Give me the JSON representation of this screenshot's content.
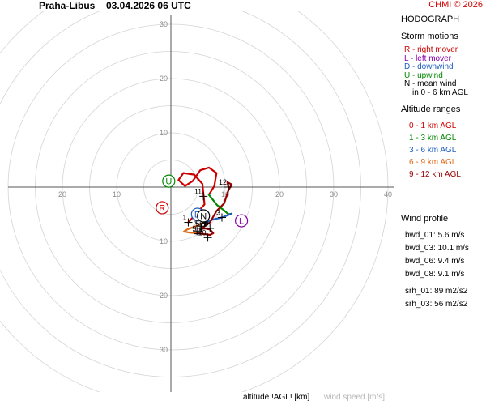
{
  "header": {
    "station": "Praha-Libus",
    "datetime": "03.04.2026 06 UTC",
    "copyright": "CHMI © 2026"
  },
  "panel": {
    "title": "HODOGRAPH",
    "storm_motions_title": "Storm motions",
    "storm_motions": [
      {
        "text": "R - right mover",
        "color": "#cc0000"
      },
      {
        "text": "L - left mover",
        "color": "#8800aa"
      },
      {
        "text": "D - downwind",
        "color": "#1f5fbf"
      },
      {
        "text": "U - upwind",
        "color": "#008800"
      },
      {
        "text": "N - mean wind",
        "color": "#000000"
      },
      {
        "text": "in 0 - 6 km AGL",
        "color": "#000000"
      }
    ],
    "altitude_title": "Altitude ranges",
    "altitude_ranges": [
      {
        "text": "0 - 1 km AGL",
        "color": "#cc0000"
      },
      {
        "text": "1 - 3 km AGL",
        "color": "#008800"
      },
      {
        "text": "3 - 6 km AGL",
        "color": "#1f5fbf"
      },
      {
        "text": "6 - 9 km AGL",
        "color": "#e06a1a"
      },
      {
        "text": "9 - 12 km AGL",
        "color": "#990000"
      }
    ],
    "wind_profile_title": "Wind profile",
    "wind_profile": [
      "bwd_01: 5.6 m/s",
      "bwd_03: 10.1 m/s",
      "bwd_06: 9.4 m/s",
      "bwd_08: 9.1 m/s"
    ],
    "srh": [
      "srh_01: 89 m2/s2",
      "srh_03: 56 m2/s2"
    ]
  },
  "footer": {
    "altitude_label": "altitude !AGL! [km]",
    "speed_label": "wind speed [m/s]"
  },
  "chart_data": {
    "type": "hodograph",
    "rings": [
      5,
      10,
      15,
      20,
      25,
      30,
      35,
      40
    ],
    "ring_labels": [
      10,
      20,
      30
    ],
    "u_axis_labels": [
      -20,
      -10,
      10,
      20,
      30,
      40
    ],
    "v_axis_labels": [
      30,
      20,
      10,
      10,
      20,
      30
    ],
    "grid": true,
    "segments": [
      {
        "name": "0 - 1 km AGL",
        "color": "#cc0000",
        "points": [
          [
            3.2,
            -6.5
          ],
          [
            6.2,
            -3.2
          ],
          [
            5.8,
            0.6
          ],
          [
            4.3,
            2.3
          ],
          [
            2.3,
            2.6
          ],
          [
            1.4,
            1.3
          ],
          [
            2.6,
            0.2
          ],
          [
            4.0,
            1.1
          ],
          [
            5.4,
            3.1
          ],
          [
            7.0,
            3.6
          ],
          [
            8.4,
            2.6
          ],
          [
            8.0,
            0.2
          ],
          [
            7.0,
            -1.4
          ]
        ]
      },
      {
        "name": "1 - 3 km AGL",
        "color": "#008800",
        "points": [
          [
            7.0,
            -1.4
          ],
          [
            8.5,
            -3.3
          ],
          [
            9.8,
            -4.3
          ],
          [
            10.6,
            -5.0
          ],
          [
            11.2,
            -4.9
          ]
        ]
      },
      {
        "name": "3 - 6 km AGL",
        "color": "#1f5fbf",
        "points": [
          [
            11.2,
            -4.9
          ],
          [
            9.4,
            -5.6
          ],
          [
            7.6,
            -6.0
          ],
          [
            6.2,
            -6.6
          ]
        ]
      },
      {
        "name": "6 - 9 km AGL",
        "color": "#e06a1a",
        "points": [
          [
            6.2,
            -6.6
          ],
          [
            4.6,
            -7.2
          ],
          [
            3.0,
            -7.8
          ],
          [
            2.4,
            -8.2
          ],
          [
            3.6,
            -8.4
          ],
          [
            5.0,
            -8.5
          ]
        ]
      },
      {
        "name": "9 - 12 km AGL",
        "color": "#990000",
        "points": [
          [
            5.0,
            -8.5
          ],
          [
            7.2,
            -8.8
          ],
          [
            7.8,
            -8.5
          ],
          [
            7.2,
            -7.8
          ],
          [
            6.2,
            -7.6
          ],
          [
            5.4,
            -7.8
          ],
          [
            7.2,
            -6.5
          ],
          [
            8.4,
            -4.4
          ],
          [
            9.8,
            -3.0
          ],
          [
            10.6,
            -0.6
          ],
          [
            11.2,
            0.5
          ],
          [
            10.4,
            0.9
          ],
          [
            10.6,
            0.0
          ]
        ]
      }
    ],
    "height_marks": [
      {
        "label": "1",
        "x": 3.2,
        "y": -6.5
      },
      {
        "label": "2",
        "x": 6.4,
        "y": -6.6
      },
      {
        "label": "3",
        "x": 9.4,
        "y": -5.6
      },
      {
        "label": "4",
        "x": 6.2,
        "y": -6.6
      },
      {
        "label": "5",
        "x": 5.6,
        "y": -7.6
      },
      {
        "label": "6",
        "x": 5.4,
        "y": -7.2
      },
      {
        "label": "7",
        "x": 4.8,
        "y": -8.1
      },
      {
        "label": "8",
        "x": 7.2,
        "y": -7.6
      },
      {
        "label": "9",
        "x": 5.0,
        "y": -8.6
      },
      {
        "label": "10",
        "x": 6.8,
        "y": -9.3
      },
      {
        "label": "11",
        "x": 6.0,
        "y": -1.7
      },
      {
        "label": "12",
        "x": 10.6,
        "y": 0.0
      }
    ],
    "storm_motions": [
      {
        "label": "R",
        "x": -1.6,
        "y": -3.8,
        "color": "#cc0000"
      },
      {
        "label": "L",
        "x": 13.0,
        "y": -6.2,
        "color": "#8800aa"
      },
      {
        "label": "D",
        "x": 4.9,
        "y": -5.0,
        "color": "#1f5fbf"
      },
      {
        "label": "U",
        "x": -0.4,
        "y": 1.1,
        "color": "#008800"
      },
      {
        "label": "N",
        "x": 6.0,
        "y": -5.3,
        "color": "#000000"
      }
    ]
  }
}
